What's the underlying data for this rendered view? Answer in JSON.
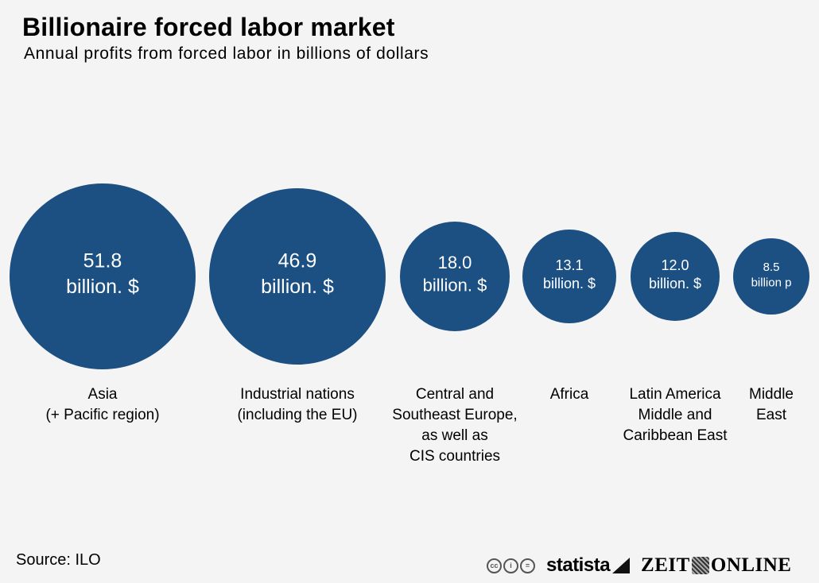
{
  "title": "Billionaire forced labor market",
  "subtitle": "Annual profits from forced labor in billions of dollars",
  "source": "Source: ILO",
  "footer": {
    "cc_icons": [
      "cc-icon",
      "by-icon",
      "nd-icon"
    ],
    "statista": "statista",
    "zeit_left": "ZEIT",
    "zeit_right": "ONLINE"
  },
  "colors": {
    "bubble": "#1c4f82",
    "background": "#f4f4f4"
  },
  "chart_data": {
    "type": "bubble",
    "title": "Billionaire forced labor market",
    "subtitle": "Annual profits from forced labor in billions of dollars",
    "values": [
      51.8,
      46.9,
      18.0,
      13.1,
      12.0,
      8.5
    ],
    "value_labels": [
      "51.8",
      "46.9",
      "18.0",
      "13.1",
      "12.0",
      "8.5"
    ],
    "unit_labels": [
      "billion. $",
      "billion. $",
      "billion. $",
      "billion. $",
      "billion. $",
      "billion p"
    ],
    "categories": [
      [
        "Asia",
        "(+ Pacific region)"
      ],
      [
        "Industrial nations",
        "(including the EU)"
      ],
      [
        "Central and",
        "Southeast Europe,",
        "as well as",
        "CIS countries"
      ],
      [
        "Africa"
      ],
      [
        "Latin America",
        "Middle and",
        "Caribbean East"
      ],
      [
        "Middle",
        "East"
      ]
    ]
  }
}
